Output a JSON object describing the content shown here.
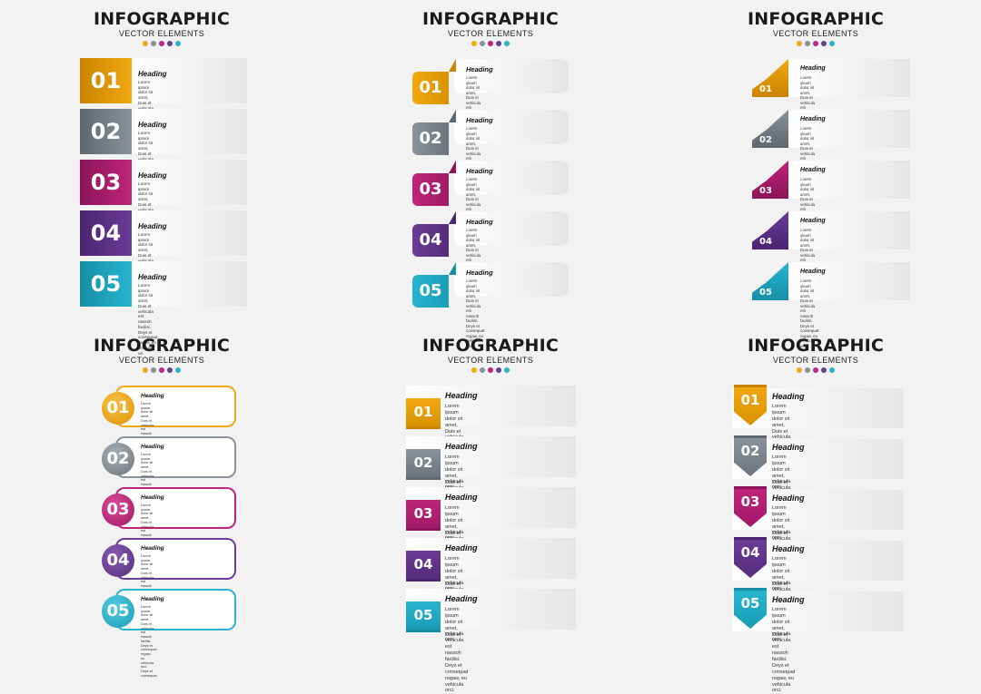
{
  "panels": [
    {
      "title": "INFOGRAPHIC",
      "subtitle": "VECTOR ELEMENTS",
      "items": [
        {
          "number": "01",
          "heading": "Heading",
          "text": "Lorem ipsum dolor sit amet, Duis et vehicula est nassoh\nfacilisi. Deys et consequat regaw, eu vehicula ori."
        },
        {
          "number": "02",
          "heading": "Heading",
          "text": "Lorem ipsum dolor sit amet, Duis et vehicula est nassoh\nfacilisi. Deys et consequat regaw, eu vehicula ori."
        },
        {
          "number": "03",
          "heading": "Heading",
          "text": "Lorem ipsum dolor sit amet, Duis et vehicula est nassoh\nfacilisi. Deys et consequat regaw, eu vehicula ori."
        },
        {
          "number": "04",
          "heading": "Heading",
          "text": "Lorem ipsum dolor sit amet, Duis et vehicula est nassoh\nfacilisi. Deys et consequat regaw, eu vehicula ori."
        },
        {
          "number": "05",
          "heading": "Heading",
          "text": "Lorem ipsum dolor sit amet, Duis et vehicula est nassoh\nfacilisi. Deys et consequat regaw, eu vehicula ori."
        }
      ]
    },
    {
      "title": "INFOGRAPHIC",
      "subtitle": "VECTOR ELEMENTS",
      "items": [
        {
          "number": "01",
          "heading": "Heading",
          "text": "Lorem ipsum dolor sit amet, Duis et vehicula est nassoh\nfacilisi. Deys et consequat regaw, eu vehicula orci."
        },
        {
          "number": "02",
          "heading": "Heading",
          "text": "Lorem ipsum dolor sit amet, Duis et vehicula est nassoh\nfacilisi. Deys et consequat regaw, eu vehicula orci."
        },
        {
          "number": "03",
          "heading": "Heading",
          "text": "Lorem ipsum dolor sit amet, Duis et vehicula est nassoh\nfacilisi. Deys et consequat regaw, eu vehicula orci."
        },
        {
          "number": "04",
          "heading": "Heading",
          "text": "Lorem ipsum dolor sit amet, Duis et vehicula est nassoh\nfacilisi. Deys et consequat regaw, eu vehicula orci."
        },
        {
          "number": "05",
          "heading": "Heading",
          "text": "Lorem ipsum dolor sit amet, Duis et vehicula est nassoh\nfacilisi. Deys et consequat regaw, eu vehicula orci."
        }
      ]
    },
    {
      "title": "INFOGRAPHIC",
      "subtitle": "VECTOR ELEMENTS",
      "items": [
        {
          "number": "01",
          "heading": "Heading",
          "text": "Lorem ipsum dolor sit amet, Duis et vehicula est nassoh\nfacilisi. Deys et consequat regaw, eu vehicula orci."
        },
        {
          "number": "02",
          "heading": "Heading",
          "text": "Lorem ipsum dolor sit amet, Duis et vehicula est nassoh\nfacilisi. Deys et consequat regaw, eu vehicula orci."
        },
        {
          "number": "03",
          "heading": "Heading",
          "text": "Lorem ipsum dolor sit amet, Duis et vehicula est nassoh\nfacilisi. Deys et consequat regaw, eu vehicula orci."
        },
        {
          "number": "04",
          "heading": "Heading",
          "text": "Lorem ipsum dolor sit amet, Duis et vehicula est nassoh\nfacilisi. Deys et consequat regaw, eu vehicula orci."
        },
        {
          "number": "05",
          "heading": "Heading",
          "text": "Lorem ipsum dolor sit amet, Duis et vehicula est nassoh\nfacilisi. Deys et consequat regaw, eu vehicula orci."
        }
      ]
    },
    {
      "title": "INFOGRAPHIC",
      "subtitle": "VECTOR ELEMENTS",
      "items": [
        {
          "number": "01",
          "heading": "Heading",
          "text": "Lorem ipsum dolor sit amet, Duis et vehicula est nassoh\nfacilisi. Deys et consequat regaw,\neu vehicula orci.\nDeys et consequat"
        },
        {
          "number": "02",
          "heading": "Heading",
          "text": "Lorem ipsum dolor sit amet, Duis et vehicula est nassoh\nfacilisi. Deys et consequat regaw,\neu vehicula orci.\nDeys et consequat"
        },
        {
          "number": "03",
          "heading": "Heading",
          "text": "Lorem ipsum dolor sit amet, Duis et vehicula est nassoh\nfacilisi. Deys et consequat regaw,\neu vehicula orci.\nDeys et consequat"
        },
        {
          "number": "04",
          "heading": "Heading",
          "text": "Lorem ipsum dolor sit amet, Duis et vehicula est nassoh\nfacilisi. Deys et consequat regaw,\neu vehicula orci.\nDeys et consequat"
        },
        {
          "number": "05",
          "heading": "Heading",
          "text": "Lorem ipsum dolor sit amet, Duis et vehicula est nassoh\nfacilisi. Deys et consequat regaw,\neu vehicula orci.\nDeys et consequat"
        }
      ]
    },
    {
      "title": "INFOGRAPHIC",
      "subtitle": "VECTOR ELEMENTS",
      "items": [
        {
          "number": "01",
          "heading": "Heading",
          "text": "Lorem ipsum dolor sit amet, Duis et vehicula est nassoh\nfacilisi. Deys et consequat regaw, eu vehicula orci."
        },
        {
          "number": "02",
          "heading": "Heading",
          "text": "Lorem ipsum dolor sit amet, Duis et vehicula est nassoh\nfacilisi. Deys et consequat regaw, eu vehicula orci."
        },
        {
          "number": "03",
          "heading": "Heading",
          "text": "Lorem ipsum dolor sit amet, Duis et vehicula est nassoh\nfacilisi. Deys et consequat regaw, eu vehicula orci."
        },
        {
          "number": "04",
          "heading": "Heading",
          "text": "Lorem ipsum dolor sit amet, Duis et vehicula est nassoh\nfacilisi. Deys et consequat regaw, eu vehicula orci."
        },
        {
          "number": "05",
          "heading": "Heading",
          "text": "Lorem ipsum dolor sit amet, Duis et vehicula est nassoh\nfacilisi. Deys et consequat regaw, eu vehicula orci."
        }
      ]
    },
    {
      "title": "INFOGRAPHIC",
      "subtitle": "VECTOR ELEMENTS",
      "items": [
        {
          "number": "01",
          "heading": "Heading",
          "text": "Lorem ipsum dolor sit amet, Duis et vehicula est nassoh\nfacilisi. Deys et consequat regaw, eu vehicula orci."
        },
        {
          "number": "02",
          "heading": "Heading",
          "text": "Lorem ipsum dolor sit amet, Duis et vehicula est nassoh\nfacilisi. Deys et consequat regaw, eu vehicula orci."
        },
        {
          "number": "03",
          "heading": "Heading",
          "text": "Lorem ipsum dolor sit amet, Duis et vehicula est nassoh\nfacilisi. Deys et consequat regaw, eu vehicula orci."
        },
        {
          "number": "04",
          "heading": "Heading",
          "text": "Lorem ipsum dolor sit amet, Duis et vehicula est nassoh\nfacilisi. Deys et consequat regaw, eu vehicula orci."
        },
        {
          "number": "05",
          "heading": "Heading",
          "text": "Lorem ipsum dolor sit amet, Duis et vehicula est nassoh\nfacilisi. Deys et consequat regaw, eu vehicula orci."
        }
      ]
    }
  ],
  "colors": {
    "accent": [
      "#f2a812",
      "#8a929b",
      "#c0247a",
      "#6b3b96",
      "#27b5d0"
    ],
    "accent_dark": [
      "#c98400",
      "#5f666e",
      "#8c1559",
      "#4a2570",
      "#168ea6"
    ],
    "title_dots": [
      "#f2a812",
      "#8a929b",
      "#c0247a",
      "#6b3b96",
      "#27b5d0"
    ]
  }
}
